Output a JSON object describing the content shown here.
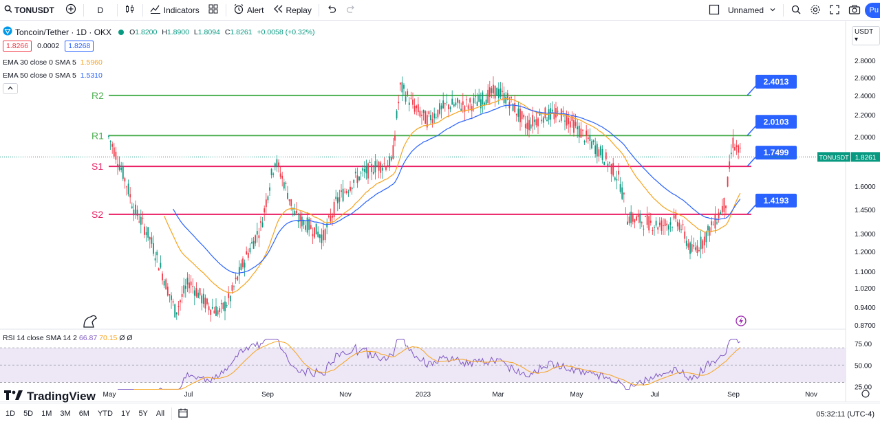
{
  "toolbar": {
    "symbol": "TONUSDT",
    "interval": "D",
    "indicators": "Indicators",
    "alert": "Alert",
    "replay": "Replay",
    "layout_name": "Unnamed",
    "publish": "Pu"
  },
  "legend": {
    "title": "Toncoin/Tether · 1D · OKX",
    "o": "O",
    "o_val": "1.8200",
    "h": "H",
    "h_val": "1.8900",
    "l": "L",
    "l_val": "1.8094",
    "c": "C",
    "c_val": "1.8261",
    "change": "+0.0058 (+0.32%)",
    "bid": "1.8266",
    "spread": "0.0002",
    "ask": "1.8268",
    "ema30": "EMA 30 close 0 SMA 5",
    "ema30_val": "1.5960",
    "ema50": "EMA 50 close 0 SMA 5",
    "ema50_val": "1.5310"
  },
  "currency": "USDT",
  "levels": [
    {
      "label": "R2",
      "value": "2.4013",
      "price": 2.4013,
      "color": "#4caf50",
      "tag_color": "#2962ff"
    },
    {
      "label": "R1",
      "value": "2.0103",
      "price": 2.0103,
      "color": "#4caf50",
      "tag_color": "#2962ff"
    },
    {
      "label": "S1",
      "value": "1.7499",
      "price": 1.7499,
      "color": "#e91e63",
      "tag_color": "#2962ff"
    },
    {
      "label": "S2",
      "value": "1.4193",
      "price": 1.4193,
      "color": "#e91e63",
      "tag_color": "#2962ff"
    }
  ],
  "price_axis": {
    "ticks": [
      "2.8000",
      "2.6000",
      "2.4000",
      "2.2000",
      "2.0000",
      "1.6000",
      "1.4500",
      "1.3000",
      "1.2000",
      "1.1000",
      "1.0200",
      "0.9400",
      "0.8700"
    ],
    "last_symbol": "TONUSDT",
    "last_price": "1.8261"
  },
  "time_axis": {
    "ticks": [
      "May",
      "Jul",
      "Sep",
      "Nov",
      "2023",
      "Mar",
      "May",
      "Jul",
      "Sep",
      "Nov"
    ]
  },
  "rsi": {
    "label": "RSI 14 close SMA 14 2",
    "rsi_val": "66.87",
    "sma_val": "70.15",
    "extra1": "Ø",
    "extra2": "Ø",
    "ticks": [
      "75.00",
      "50.00",
      "25.00"
    ]
  },
  "bottom_bar": {
    "ranges": [
      "1D",
      "5D",
      "1M",
      "3M",
      "6M",
      "YTD",
      "1Y",
      "5Y",
      "All"
    ],
    "clock": "05:32:11 (UTC-4)"
  },
  "logo_text": "TradingView",
  "colors": {
    "up": "#089981",
    "down": "#f23645",
    "ema30": "#f7a21b",
    "ema50": "#2962ff",
    "rsi": "#7e57c2",
    "rsi_band": "#ede7f6"
  }
}
